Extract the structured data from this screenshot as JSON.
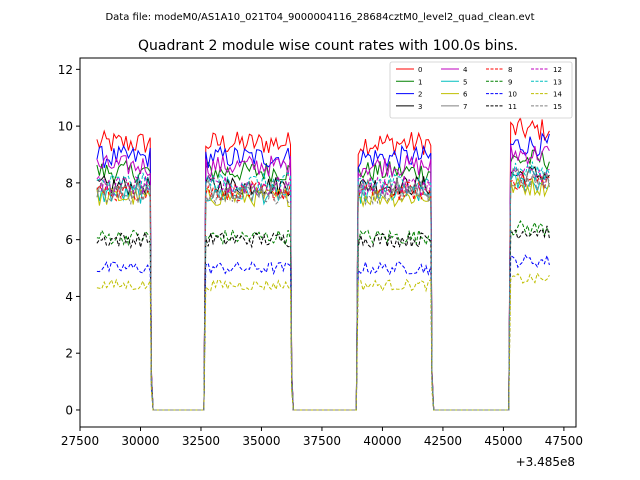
{
  "chart_data": {
    "type": "line",
    "suptitle": "Data file: modeM0/AS1A10_021T04_9000004116_28684cztM0_level2_quad_clean.evt",
    "title": "Quadrant 2 module wise count rates with 100.0s bins.",
    "xlabel": "",
    "ylabel": "",
    "x_offset_label": "+3.485e8",
    "xlim": [
      27500,
      48000
    ],
    "ylim": [
      -0.6,
      12.4
    ],
    "x_ticks": [
      27500,
      30000,
      32500,
      35000,
      37500,
      40000,
      42500,
      45000,
      47500
    ],
    "x_tick_labels": [
      "27500",
      "30000",
      "32500",
      "35000",
      "37500",
      "40000",
      "42500",
      "45000",
      "47500"
    ],
    "y_ticks": [
      0,
      2,
      4,
      6,
      8,
      10,
      12
    ],
    "y_tick_labels": [
      "0",
      "2",
      "4",
      "6",
      "8",
      "10",
      "12"
    ],
    "segments": [
      {
        "x_start": 28200,
        "x_end": 30400,
        "level": 1.0
      },
      {
        "x_start": 32700,
        "x_end": 36200,
        "level": 1.0
      },
      {
        "x_start": 39000,
        "x_end": 42000,
        "level": 1.0
      },
      {
        "x_start": 45300,
        "x_end": 46900,
        "level": 1.05
      }
    ],
    "gaps": [
      {
        "x_start": 30400,
        "x_end": 32700
      },
      {
        "x_start": 36200,
        "x_end": 39000
      },
      {
        "x_start": 42000,
        "x_end": 45300
      }
    ],
    "bin_width_s": 100,
    "legend_location": "upper-right",
    "series": [
      {
        "name": "0",
        "color": "#ff0000",
        "dash": "solid",
        "mean": 9.4
      },
      {
        "name": "1",
        "color": "#008000",
        "dash": "solid",
        "mean": 8.4
      },
      {
        "name": "2",
        "color": "#0000ff",
        "dash": "solid",
        "mean": 8.9
      },
      {
        "name": "3",
        "color": "#000000",
        "dash": "solid",
        "mean": 7.9
      },
      {
        "name": "4",
        "color": "#bf00bf",
        "dash": "solid",
        "mean": 8.6
      },
      {
        "name": "5",
        "color": "#00bfbf",
        "dash": "solid",
        "mean": 7.6
      },
      {
        "name": "6",
        "color": "#bfbf00",
        "dash": "solid",
        "mean": 7.5
      },
      {
        "name": "7",
        "color": "#808080",
        "dash": "solid",
        "mean": 7.8
      },
      {
        "name": "8",
        "color": "#ff0000",
        "dash": "dashed",
        "mean": 7.7
      },
      {
        "name": "9",
        "color": "#008000",
        "dash": "dashed",
        "mean": 6.1
      },
      {
        "name": "10",
        "color": "#0000ff",
        "dash": "dashed",
        "mean": 5.0
      },
      {
        "name": "11",
        "color": "#000000",
        "dash": "dashed",
        "mean": 6.0
      },
      {
        "name": "12",
        "color": "#bf00bf",
        "dash": "dashed",
        "mean": 7.9
      },
      {
        "name": "13",
        "color": "#00bfbf",
        "dash": "dashed",
        "mean": 8.0
      },
      {
        "name": "14",
        "color": "#bfbf00",
        "dash": "dashed",
        "mean": 4.4
      },
      {
        "name": "15",
        "color": "#808080",
        "dash": "dashed",
        "mean": 7.6
      }
    ]
  }
}
